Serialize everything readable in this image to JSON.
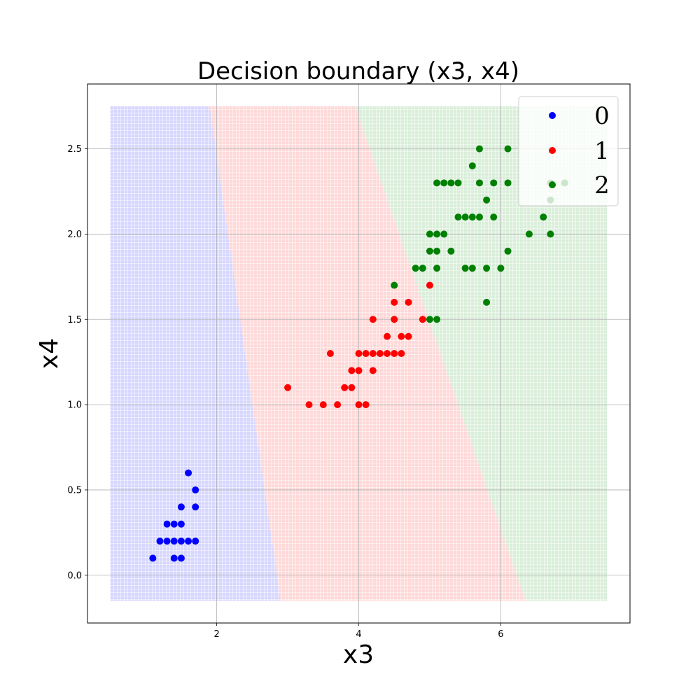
{
  "chart_data": {
    "type": "scatter",
    "title": "Decision boundary (x3, x4)",
    "xlabel": "x3",
    "ylabel": "x4",
    "xlim": [
      0.18,
      7.82
    ],
    "ylim": [
      -0.28,
      2.88
    ],
    "xticks": [
      "2",
      "4",
      "6"
    ],
    "yticks": [
      "0.0",
      "0.5",
      "1.0",
      "1.5",
      "2.0",
      "2.5"
    ],
    "grid": true,
    "legend_position": "top-right",
    "colors": {
      "0": "#0000ff",
      "1": "#ff0000",
      "2": "#008000"
    },
    "region_colors": {
      "0": "#d6d6ff",
      "1": "#ffd8d8",
      "2": "#d9eed9"
    },
    "background_grid": {
      "x_range": [
        0.5,
        7.5
      ],
      "y_range": [
        -0.15,
        2.75
      ]
    },
    "boundaries": {
      "class0_class1": [
        [
          1.9,
          2.75
        ],
        [
          2.9,
          -0.15
        ]
      ],
      "class1_class2": [
        [
          3.95,
          2.75
        ],
        [
          6.35,
          -0.15
        ]
      ]
    },
    "series": [
      {
        "name": "0",
        "points": [
          [
            1.1,
            0.1
          ],
          [
            1.2,
            0.2
          ],
          [
            1.3,
            0.2
          ],
          [
            1.3,
            0.3
          ],
          [
            1.4,
            0.1
          ],
          [
            1.4,
            0.2
          ],
          [
            1.4,
            0.3
          ],
          [
            1.5,
            0.1
          ],
          [
            1.5,
            0.2
          ],
          [
            1.5,
            0.3
          ],
          [
            1.5,
            0.4
          ],
          [
            1.6,
            0.2
          ],
          [
            1.6,
            0.6
          ],
          [
            1.7,
            0.2
          ],
          [
            1.7,
            0.4
          ],
          [
            1.7,
            0.5
          ]
        ]
      },
      {
        "name": "1",
        "points": [
          [
            3.0,
            1.1
          ],
          [
            3.3,
            1.0
          ],
          [
            3.5,
            1.0
          ],
          [
            3.6,
            1.3
          ],
          [
            3.7,
            1.0
          ],
          [
            3.8,
            1.1
          ],
          [
            3.9,
            1.1
          ],
          [
            3.9,
            1.2
          ],
          [
            4.0,
            1.0
          ],
          [
            4.0,
            1.2
          ],
          [
            4.0,
            1.3
          ],
          [
            4.1,
            1.0
          ],
          [
            4.1,
            1.3
          ],
          [
            4.2,
            1.2
          ],
          [
            4.2,
            1.3
          ],
          [
            4.2,
            1.5
          ],
          [
            4.3,
            1.3
          ],
          [
            4.4,
            1.3
          ],
          [
            4.4,
            1.4
          ],
          [
            4.5,
            1.3
          ],
          [
            4.5,
            1.5
          ],
          [
            4.5,
            1.6
          ],
          [
            4.6,
            1.3
          ],
          [
            4.6,
            1.4
          ],
          [
            4.7,
            1.4
          ],
          [
            4.7,
            1.6
          ],
          [
            4.9,
            1.5
          ],
          [
            5.0,
            1.7
          ]
        ]
      },
      {
        "name": "2",
        "points": [
          [
            4.5,
            1.7
          ],
          [
            4.8,
            1.8
          ],
          [
            4.9,
            1.8
          ],
          [
            5.0,
            1.5
          ],
          [
            5.0,
            1.9
          ],
          [
            5.0,
            2.0
          ],
          [
            5.1,
            1.5
          ],
          [
            5.1,
            1.8
          ],
          [
            5.1,
            1.9
          ],
          [
            5.1,
            2.0
          ],
          [
            5.1,
            2.3
          ],
          [
            5.2,
            2.0
          ],
          [
            5.2,
            2.3
          ],
          [
            5.3,
            1.9
          ],
          [
            5.3,
            2.3
          ],
          [
            5.4,
            2.1
          ],
          [
            5.4,
            2.3
          ],
          [
            5.5,
            1.8
          ],
          [
            5.5,
            2.1
          ],
          [
            5.6,
            1.8
          ],
          [
            5.6,
            2.1
          ],
          [
            5.6,
            2.4
          ],
          [
            5.7,
            2.1
          ],
          [
            5.7,
            2.3
          ],
          [
            5.7,
            2.5
          ],
          [
            5.8,
            1.6
          ],
          [
            5.8,
            1.8
          ],
          [
            5.8,
            2.2
          ],
          [
            5.9,
            2.1
          ],
          [
            5.9,
            2.3
          ],
          [
            6.0,
            1.8
          ],
          [
            6.1,
            1.9
          ],
          [
            6.1,
            2.3
          ],
          [
            6.1,
            2.5
          ],
          [
            6.4,
            2.0
          ],
          [
            6.6,
            2.1
          ],
          [
            6.7,
            2.0
          ],
          [
            6.7,
            2.2
          ],
          [
            6.7,
            2.3
          ],
          [
            6.9,
            2.3
          ]
        ]
      }
    ]
  }
}
